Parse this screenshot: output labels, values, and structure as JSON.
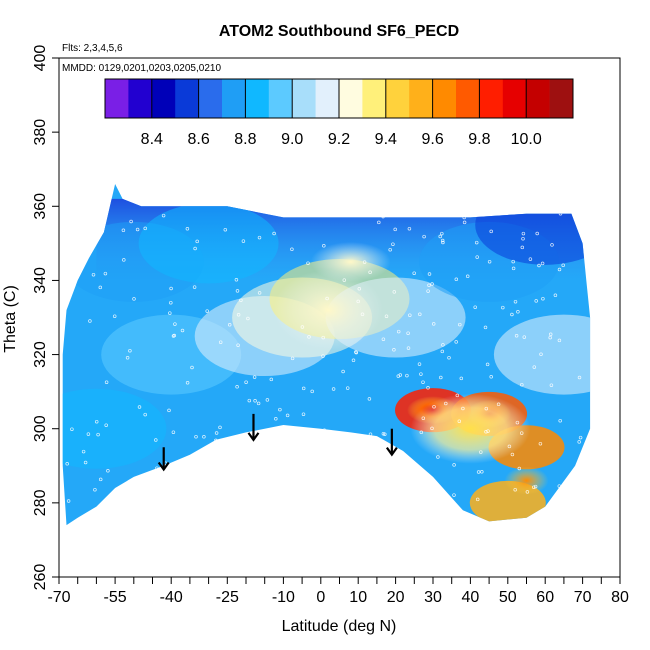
{
  "chart_data": {
    "type": "heatmap",
    "title": "ATOM2 Southbound SF6_PECD",
    "subtitle_flights": "Flts: 2,3,4,5,6",
    "subtitle_dates": "MMDD: 0129,0201,0203,0205,0210",
    "xlabel": "Latitude (deg N)",
    "ylabel": "Theta (C)",
    "xlim": [
      -70,
      80
    ],
    "ylim": [
      260,
      400
    ],
    "x_major_ticks": [
      -70,
      -55,
      -40,
      -25,
      -10,
      0,
      10,
      20,
      30,
      40,
      50,
      60,
      70,
      80
    ],
    "x_all_ticks": [
      -70,
      -65,
      -60,
      -55,
      -50,
      -45,
      -40,
      -35,
      -30,
      -25,
      -20,
      -15,
      -10,
      -5,
      0,
      5,
      10,
      15,
      20,
      25,
      30,
      35,
      40,
      45,
      50,
      55,
      60,
      65,
      70,
      75,
      80
    ],
    "y_ticks": [
      260,
      280,
      300,
      320,
      340,
      360,
      380,
      400
    ],
    "colorbar": {
      "min": 8.2,
      "max": 10.2,
      "step": 0.1,
      "tick_values": [
        "8.4",
        "8.6",
        "8.8",
        "9.0",
        "9.2",
        "9.4",
        "9.6",
        "9.8",
        "10.0"
      ],
      "colors": [
        "#7a1fe6",
        "#2200d0",
        "#0000b8",
        "#0a3ad8",
        "#2a6cec",
        "#1f9ef5",
        "#10b8ff",
        "#5ccaff",
        "#a8defa",
        "#e2f0fc",
        "#fffce0",
        "#fff07a",
        "#ffd23c",
        "#ffb01a",
        "#ff8a00",
        "#ff5a00",
        "#ff1e00",
        "#e60000",
        "#c40000",
        "#9e1010"
      ],
      "placement": "top-inside"
    },
    "region": {
      "upper_boundary": [
        [
          -68,
          332
        ],
        [
          -65,
          340
        ],
        [
          -62,
          346
        ],
        [
          -58,
          353
        ],
        [
          -55,
          366
        ],
        [
          -53,
          362
        ],
        [
          -48,
          360
        ],
        [
          -35,
          360
        ],
        [
          -25,
          360
        ],
        [
          -10,
          357
        ],
        [
          0,
          357
        ],
        [
          20,
          357
        ],
        [
          40,
          357
        ],
        [
          55,
          358
        ],
        [
          67,
          358
        ],
        [
          70,
          350
        ],
        [
          71,
          340
        ],
        [
          72,
          330
        ],
        [
          72,
          300
        ]
      ],
      "lower_boundary": [
        [
          72,
          300
        ],
        [
          68,
          290
        ],
        [
          60,
          279
        ],
        [
          55,
          276
        ],
        [
          45,
          275
        ],
        [
          38,
          278
        ],
        [
          30,
          287
        ],
        [
          22,
          294
        ],
        [
          15,
          298
        ],
        [
          8,
          299
        ],
        [
          0,
          300
        ],
        [
          -10,
          301
        ],
        [
          -20,
          299
        ],
        [
          -28,
          297
        ],
        [
          -35,
          293
        ],
        [
          -42,
          290
        ],
        [
          -50,
          287
        ],
        [
          -55,
          284
        ],
        [
          -60,
          279
        ],
        [
          -65,
          276
        ],
        [
          -68,
          274
        ],
        [
          -69,
          290
        ],
        [
          -69,
          300
        ],
        [
          -69,
          320
        ],
        [
          -68,
          332
        ]
      ]
    },
    "value_field": [
      {
        "lat": -60,
        "theta": 300,
        "value": 8.85
      },
      {
        "lat": -40,
        "theta": 320,
        "value": 8.9
      },
      {
        "lat": -50,
        "theta": 345,
        "value": 8.75
      },
      {
        "lat": -30,
        "theta": 350,
        "value": 8.8
      },
      {
        "lat": -15,
        "theta": 325,
        "value": 9.1
      },
      {
        "lat": -5,
        "theta": 330,
        "value": 9.25
      },
      {
        "lat": 5,
        "theta": 335,
        "value": 9.3
      },
      {
        "lat": 20,
        "theta": 330,
        "value": 9.15
      },
      {
        "lat": 45,
        "theta": 345,
        "value": 8.75
      },
      {
        "lat": 60,
        "theta": 355,
        "value": 8.55
      },
      {
        "lat": 30,
        "theta": 305,
        "value": 9.8
      },
      {
        "lat": 45,
        "theta": 304,
        "value": 9.7
      },
      {
        "lat": 55,
        "theta": 295,
        "value": 9.6
      },
      {
        "lat": 50,
        "theta": 280,
        "value": 9.5
      },
      {
        "lat": 65,
        "theta": 320,
        "value": 9.1
      }
    ],
    "arrows": [
      {
        "lat": -42,
        "theta_top": 295,
        "theta_tip": 289
      },
      {
        "lat": -18,
        "theta_top": 304,
        "theta_tip": 297
      },
      {
        "lat": 19,
        "theta_top": 300,
        "theta_tip": 293
      }
    ]
  }
}
